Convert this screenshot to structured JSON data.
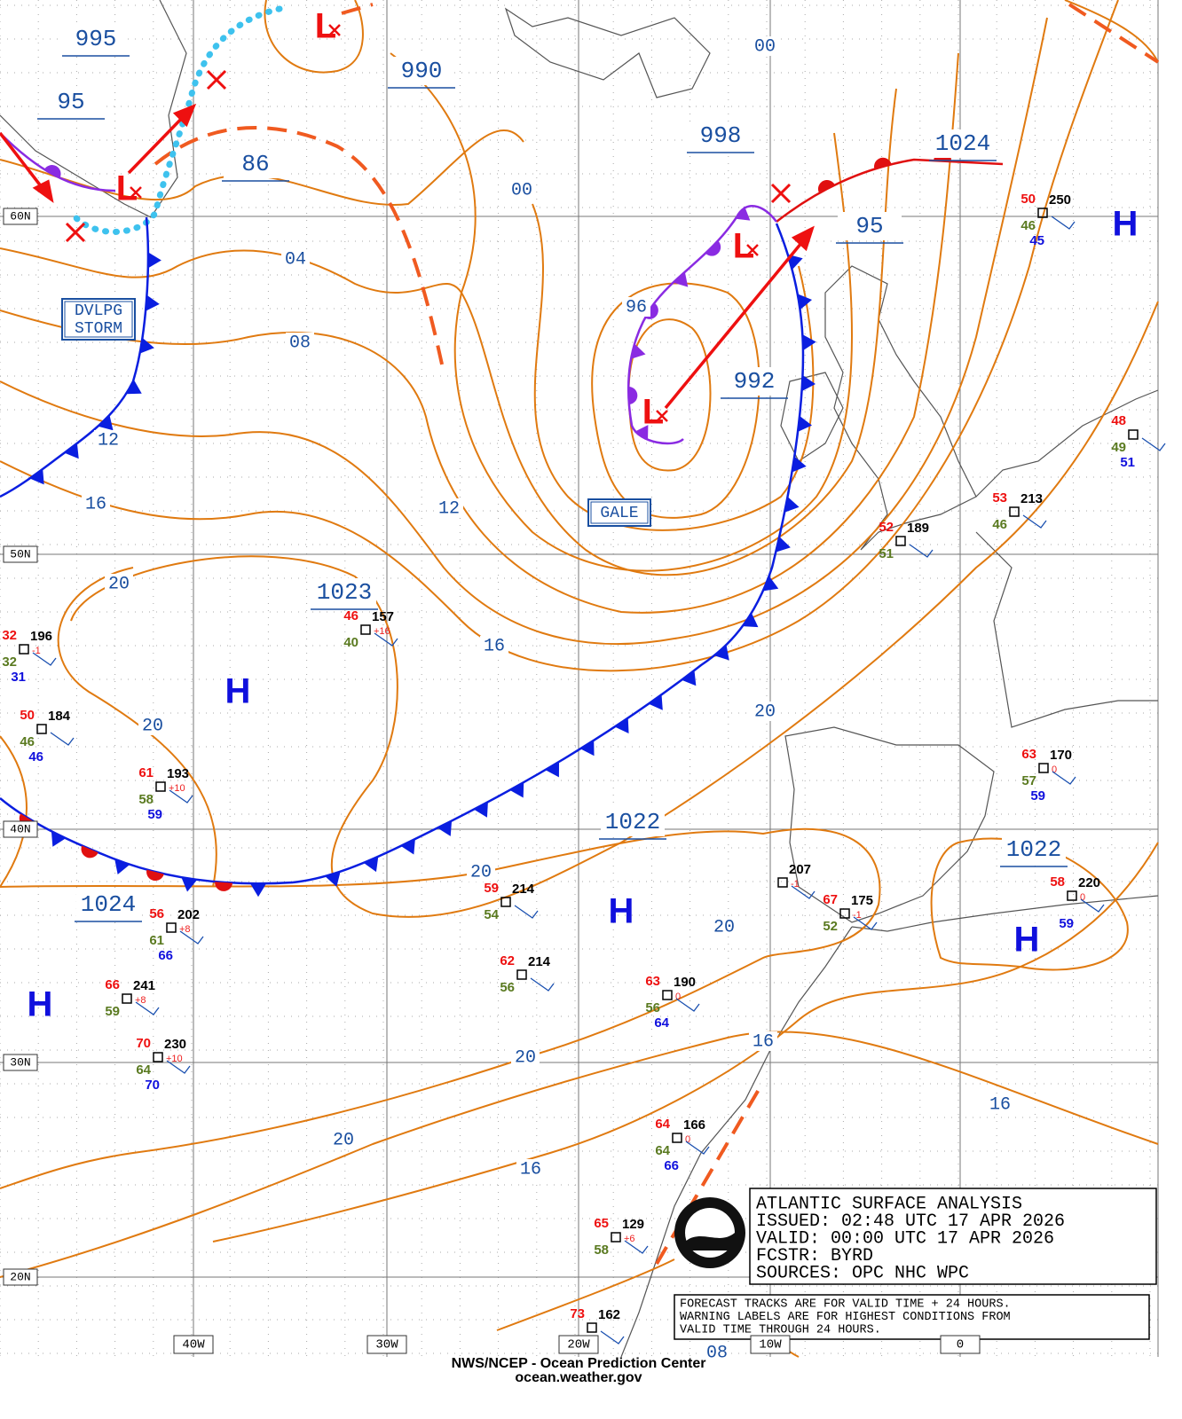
{
  "grid_labels": {
    "latitudes": [
      "60N",
      "50N",
      "40N",
      "30N",
      "20N"
    ],
    "longitudes": [
      "40W",
      "30W",
      "20W",
      "10W",
      "0"
    ]
  },
  "pressure_labels": [
    "995",
    "95",
    "990",
    "86",
    "998",
    "1024",
    "95",
    "992",
    "1023",
    "1022",
    "1022",
    "1024"
  ],
  "isobar_labels": [
    "00",
    "00",
    "04",
    "08",
    "12",
    "16",
    "12",
    "96",
    "20",
    "16",
    "20",
    "20",
    "20",
    "20",
    "20",
    "16",
    "16",
    "20",
    "16",
    "08"
  ],
  "centers": [
    "H",
    "H",
    "H",
    "H",
    "H",
    "L",
    "L",
    "L",
    "L"
  ],
  "warnings": [
    [
      "DVLPG",
      "STORM"
    ],
    [
      "GALE"
    ]
  ],
  "stations": [
    {
      "t": "50",
      "p": "250",
      "d": "46",
      "s": "45"
    },
    {
      "t": "48",
      "d": "49",
      "s": "51"
    },
    {
      "t": "53",
      "p": "213",
      "d": "46"
    },
    {
      "t": "52",
      "p": "189",
      "d": "51"
    },
    {
      "t": "46",
      "p": "157",
      "d": "40",
      "tend": "+16"
    },
    {
      "t": "32",
      "p": "196",
      "d": "32",
      "s": "31",
      "tend": "-1"
    },
    {
      "t": "50",
      "p": "184",
      "d": "46",
      "s": "46"
    },
    {
      "t": "61",
      "p": "193",
      "d": "58",
      "s": "59",
      "tend": "+10"
    },
    {
      "t": "63",
      "p": "170",
      "d": "57",
      "s": "59",
      "tend": "0"
    },
    {
      "p": "207",
      "tend": "-1"
    },
    {
      "t": "67",
      "p": "175",
      "d": "52",
      "tend": "-1"
    },
    {
      "t": "58",
      "p": "220",
      "s": "59",
      "tend": "0"
    },
    {
      "t": "59",
      "p": "214",
      "d": "54"
    },
    {
      "t": "56",
      "p": "202",
      "d": "61",
      "s": "66",
      "tend": "+8"
    },
    {
      "t": "62",
      "p": "214",
      "d": "56"
    },
    {
      "t": "63",
      "p": "190",
      "d": "56",
      "s": "64",
      "tend": "0"
    },
    {
      "t": "66",
      "p": "241",
      "d": "59",
      "tend": "+8"
    },
    {
      "t": "70",
      "p": "230",
      "d": "64",
      "s": "70",
      "tend": "+10"
    },
    {
      "t": "64",
      "p": "166",
      "d": "64",
      "s": "66",
      "tend": "0"
    },
    {
      "t": "65",
      "p": "129",
      "d": "58",
      "tend": "+6"
    },
    {
      "t": "73",
      "p": "162"
    }
  ],
  "info_box": [
    "ATLANTIC SURFACE ANALYSIS",
    "ISSUED:  02:48 UTC 17 APR 2026",
    "VALID:   00:00 UTC 17 APR 2026",
    "FCSTR:   BYRD",
    "SOURCES: OPC NHC WPC"
  ],
  "notice": [
    "FORECAST TRACKS ARE FOR VALID TIME + 24 HOURS.",
    "WARNING LABELS ARE FOR HIGHEST CONDITIONS FROM",
    "VALID TIME THROUGH 24 HOURS."
  ],
  "footer": [
    "NWS/NCEP - Ocean Prediction Center",
    "ocean.weather.gov"
  ]
}
